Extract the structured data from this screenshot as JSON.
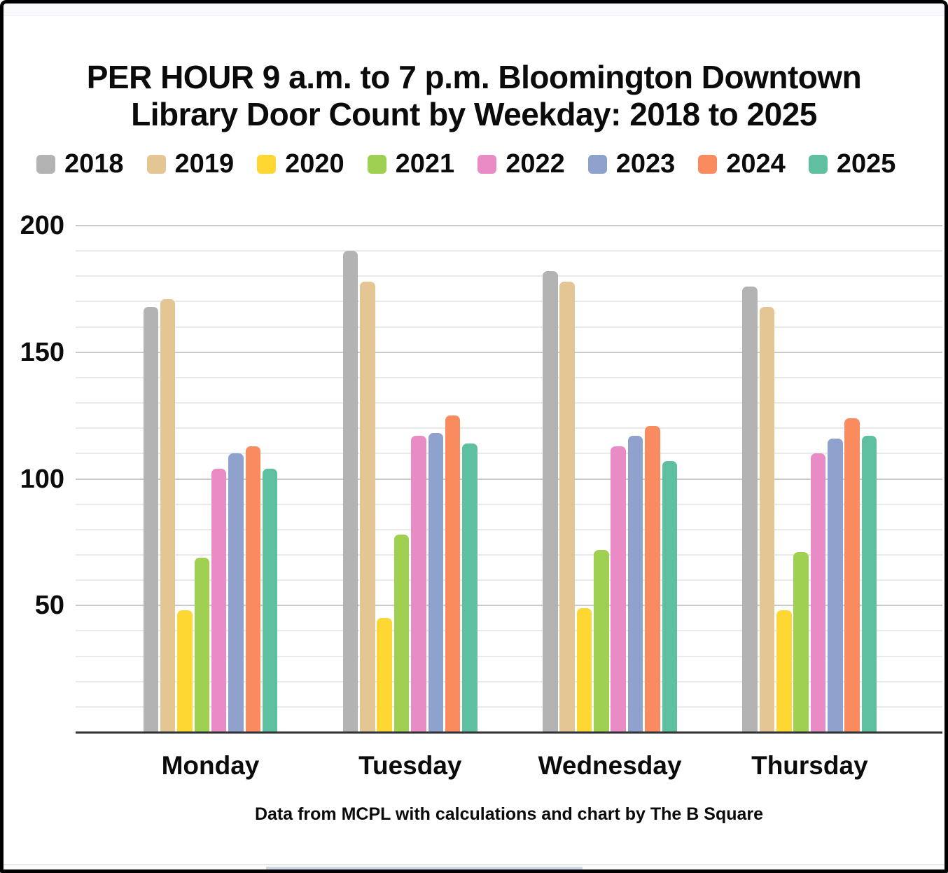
{
  "chart_data": {
    "type": "bar",
    "title": "PER HOUR 9 a.m. to 7 p.m. Bloomington Downtown Library Door Count by Weekday: 2018 to 2025",
    "title_lines": [
      "PER HOUR 9 a.m. to 7 p.m. Bloomington Downtown",
      "Library Door Count by Weekday: 2018 to 2025"
    ],
    "categories": [
      "Monday",
      "Tuesday",
      "Wednesday",
      "Thursday"
    ],
    "series": [
      {
        "name": "2018",
        "color": "#b3b3b3",
        "values": [
          168,
          190,
          182,
          176
        ]
      },
      {
        "name": "2019",
        "color": "#e3c693",
        "values": [
          171,
          178,
          178,
          168
        ]
      },
      {
        "name": "2020",
        "color": "#fed733",
        "values": [
          48,
          45,
          49,
          48
        ]
      },
      {
        "name": "2021",
        "color": "#9fd051",
        "values": [
          69,
          78,
          72,
          71
        ]
      },
      {
        "name": "2022",
        "color": "#e98cc5",
        "values": [
          104,
          117,
          113,
          110
        ]
      },
      {
        "name": "2023",
        "color": "#8fa2ce",
        "values": [
          110,
          118,
          117,
          116
        ]
      },
      {
        "name": "2024",
        "color": "#fa8b5e",
        "values": [
          113,
          125,
          121,
          124
        ]
      },
      {
        "name": "2025",
        "color": "#5fc0a1",
        "values": [
          104,
          114,
          107,
          117
        ]
      }
    ],
    "xlabel": "",
    "ylabel": "",
    "ylim": [
      0,
      200
    ],
    "yticks": [
      50,
      100,
      150,
      200
    ],
    "gridline_step": 10,
    "grid": true,
    "legend_position": "top",
    "footer": "Data from MCPL with calculations and chart by The B Square"
  },
  "colors": {
    "major_grid": "#c7c9ca",
    "minor_grid": "#e8e9e9",
    "baseline": "#333539",
    "frame": "#000000",
    "top_strip": "#f7f9fc",
    "scrollbar_track": "#fafbfb",
    "scrollbar_thumb": "#ccd6e7"
  }
}
